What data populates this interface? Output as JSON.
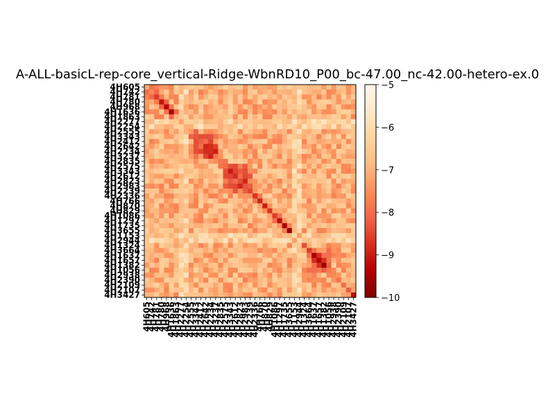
{
  "chart_data": {
    "type": "heatmap",
    "title": "A-ALL-basicL-rep-core_vertical-Ridge-WbnRD10_P00_bc-47.00_nc-42.00-hetero-ex.0",
    "colormap": "OrRd_r",
    "vmin": -10,
    "vmax": -5,
    "colorbar_ticks": [
      -10,
      -9,
      -8,
      -7,
      -6,
      -5
    ],
    "colorbar_tick_labels": [
      "−10",
      "−9",
      "−8",
      "−7",
      "−6",
      "−5"
    ],
    "labels": [
      "4H605",
      "4H742",
      "4H781",
      "4H780",
      "4H968",
      "4H1636",
      "4H1863",
      "4H2277",
      "4H2254",
      "4H2555",
      "4H3343",
      "4H2412",
      "4H2642",
      "4H2234",
      "4H3237",
      "4H2835",
      "4H2575",
      "4H3343",
      "4H2612",
      "4H2823",
      "4H2983",
      "4H2239",
      "4H2336",
      "4H766",
      "4H870",
      "4H829",
      "4H1086",
      "4H1297",
      "4H1735",
      "4H3655",
      "4H1153",
      "4H2944",
      "4H1324",
      "4H3664",
      "4H1637",
      "4H1657",
      "4H1382",
      "4H1056",
      "4H2938",
      "4H2390",
      "4H2109",
      "4H2107",
      "4H3427"
    ],
    "diagonal_values": [
      -7.1,
      -7.6,
      -8.6,
      -9.1,
      -9.3,
      -9.5,
      -7.0,
      -7.2,
      -7.0,
      -7.3,
      -8.3,
      -8.2,
      -8.9,
      -8.8,
      -7.9,
      -7.8,
      -8.0,
      -9.0,
      -8.8,
      -8.4,
      -8.3,
      -8.5,
      -8.7,
      -8.9,
      -9.0,
      -8.7,
      -8.6,
      -9.2,
      -9.5,
      -9.7,
      -6.1,
      -6.0,
      -8.4,
      -8.6,
      -9.4,
      -9.3,
      -9.6,
      -7.8,
      -7.6,
      -7.9,
      -8.0,
      -8.2,
      -9.2
    ]
  }
}
